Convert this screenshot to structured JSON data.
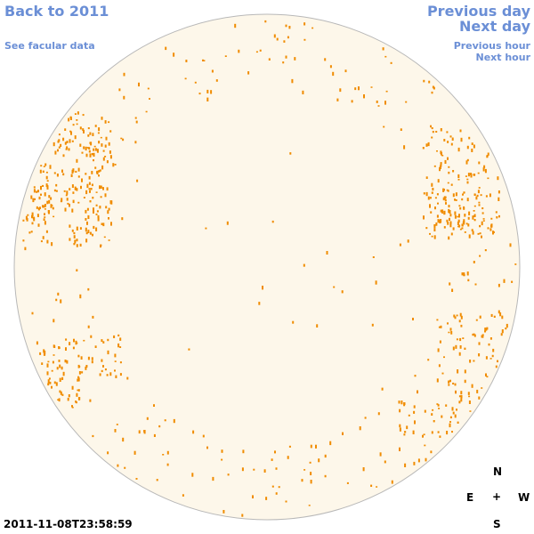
{
  "nav": {
    "back_label": "Back to 2011",
    "facular_label": "See facular data",
    "prev_day_label": "Previous day",
    "next_day_label": "Next day",
    "prev_hour_label": "Previous hour",
    "next_hour_label": "Next hour"
  },
  "compass": {
    "n": "N",
    "e": "E",
    "center": "+",
    "w": "W",
    "s": "S"
  },
  "timestamp": "2011-11-08T23:58:59",
  "colors": {
    "disk_fill": "#fdf7ea",
    "disk_border": "#b8b8b8",
    "facula": "#f08c00",
    "link": "#6b8fd6"
  }
}
